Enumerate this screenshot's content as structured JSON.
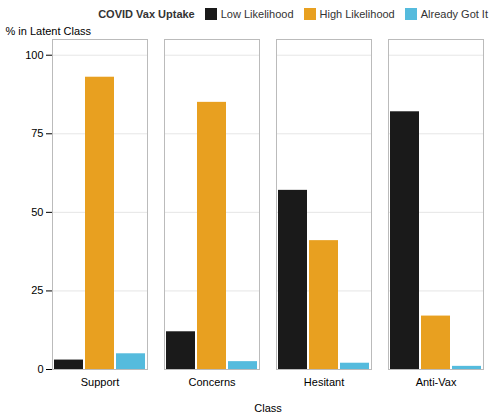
{
  "chart_data": {
    "type": "bar",
    "categories": [
      "Support",
      "Concerns",
      "Hesitant",
      "Anti-Vax"
    ],
    "series": [
      {
        "name": "Low Likelihood",
        "color": "#1a1a1a",
        "values": [
          3,
          12,
          57,
          82
        ]
      },
      {
        "name": "High Likelihood",
        "color": "#E8A020",
        "values": [
          93,
          85,
          41,
          17
        ]
      },
      {
        "name": "Already Got It",
        "color": "#55BBDD",
        "values": [
          5,
          2.5,
          2,
          1
        ]
      }
    ],
    "xlabel": "Class",
    "ylabel": "% in Latent Class",
    "legend_title": "COVID Vax Uptake",
    "ylim": [
      0,
      105
    ],
    "yticks": [
      0,
      25,
      50,
      75,
      100
    ],
    "grid": true,
    "legend": "upper right"
  }
}
